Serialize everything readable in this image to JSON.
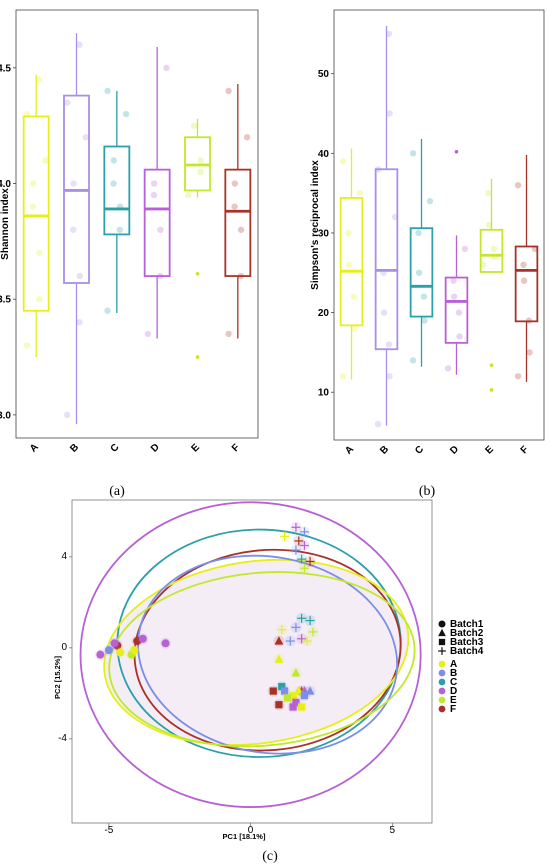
{
  "captions": {
    "a": "(a)",
    "b": "(b)",
    "c": "(c)"
  },
  "chart_data": [
    {
      "id": "a",
      "type": "box",
      "ylabel": "Shannon index",
      "ylim": [
        2.9,
        4.75
      ],
      "yticks": [
        3.0,
        3.5,
        4.0,
        4.5
      ],
      "ytick_labels": [
        "3.0",
        "3.5",
        "4.0",
        "4.5"
      ],
      "categories": [
        "A",
        "B",
        "C",
        "D",
        "E",
        "F"
      ],
      "colors": [
        "#e6f018",
        "#a98fe8",
        "#2aa0a8",
        "#b860d6",
        "#c2e82a",
        "#a83228"
      ],
      "boxes": [
        {
          "min": 3.25,
          "q1": 3.45,
          "median": 3.86,
          "q3": 4.29,
          "max": 4.47
        },
        {
          "min": 2.96,
          "q1": 3.57,
          "median": 3.97,
          "q3": 4.38,
          "max": 4.65
        },
        {
          "min": 3.44,
          "q1": 3.78,
          "median": 3.89,
          "q3": 4.16,
          "max": 4.4
        },
        {
          "min": 3.33,
          "q1": 3.6,
          "median": 3.89,
          "q3": 4.06,
          "max": 4.59
        },
        {
          "min": 3.94,
          "q1": 3.97,
          "median": 4.08,
          "q3": 4.2,
          "max": 4.28
        },
        {
          "min": 3.33,
          "q1": 3.6,
          "median": 3.88,
          "q3": 4.06,
          "max": 4.43
        }
      ],
      "outliers": [
        [],
        [],
        [],
        [],
        [
          3.61,
          3.25
        ],
        []
      ],
      "points": [
        [
          3.3,
          3.5,
          3.7,
          3.9,
          4.0,
          4.1,
          4.3,
          4.45
        ],
        [
          3.0,
          3.4,
          3.6,
          3.8,
          4.0,
          4.2,
          4.35,
          4.6
        ],
        [
          3.45,
          3.8,
          3.9,
          4.0,
          4.1,
          4.3,
          4.4
        ],
        [
          3.35,
          3.6,
          3.8,
          3.95,
          4.0,
          4.5
        ],
        [
          3.95,
          4.05,
          4.1,
          4.25
        ],
        [
          3.35,
          3.6,
          3.8,
          3.9,
          4.0,
          4.2,
          4.4
        ]
      ]
    },
    {
      "id": "b",
      "type": "box",
      "ylabel": "Simpson's reciprocal index",
      "ylim": [
        4,
        58
      ],
      "yticks": [
        10,
        20,
        30,
        40,
        50
      ],
      "ytick_labels": [
        "10",
        "20",
        "30",
        "40",
        "50"
      ],
      "categories": [
        "A",
        "B",
        "C",
        "D",
        "E",
        "F"
      ],
      "colors": [
        "#e6f018",
        "#a98fe8",
        "#2aa0a8",
        "#b860d6",
        "#c2e82a",
        "#a83228"
      ],
      "boxes": [
        {
          "min": 11.6,
          "q1": 18.4,
          "median": 25.2,
          "q3": 34.4,
          "max": 40.6
        },
        {
          "min": 5.8,
          "q1": 15.4,
          "median": 25.3,
          "q3": 38.0,
          "max": 56.0
        },
        {
          "min": 13.2,
          "q1": 19.5,
          "median": 23.3,
          "q3": 30.6,
          "max": 41.8
        },
        {
          "min": 12.2,
          "q1": 16.2,
          "median": 21.4,
          "q3": 24.4,
          "max": 29.7
        },
        {
          "min": 25.1,
          "q1": 25.1,
          "median": 27.2,
          "q3": 30.4,
          "max": 36.8
        },
        {
          "min": 11.3,
          "q1": 18.9,
          "median": 25.3,
          "q3": 28.3,
          "max": 39.8
        }
      ],
      "outliers": [
        [],
        [],
        [],
        [
          40.2
        ],
        [
          13.4,
          10.3
        ],
        []
      ],
      "points": [
        [
          12,
          18,
          22,
          26,
          30,
          35,
          39
        ],
        [
          6,
          12,
          16,
          20,
          25,
          32,
          38,
          45,
          55
        ],
        [
          14,
          19,
          22,
          25,
          30,
          34,
          40
        ],
        [
          13,
          17,
          20,
          22,
          24,
          28
        ],
        [
          26,
          27,
          28,
          31,
          35
        ],
        [
          12,
          15,
          19,
          24,
          26,
          28,
          36
        ]
      ]
    },
    {
      "id": "c",
      "type": "scatter",
      "xlabel": "PC1  [18.1%]",
      "ylabel": "PC2  [15.2%]",
      "xlim": [
        -6.3,
        6.4
      ],
      "ylim": [
        -7.7,
        6.5
      ],
      "xticks": [
        -5,
        0,
        5
      ],
      "xtick_labels": [
        "-5",
        "0",
        "5"
      ],
      "yticks": [
        -4,
        0,
        4
      ],
      "ytick_labels": [
        "-4",
        "0",
        "4"
      ],
      "legend_batch": [
        "Batch1",
        "Batch2",
        "Batch3",
        "Batch4"
      ],
      "legend_groups": [
        {
          "name": "A",
          "color": "#e6f018"
        },
        {
          "name": "B",
          "color": "#7b8ee8"
        },
        {
          "name": "C",
          "color": "#2aa0a8"
        },
        {
          "name": "D",
          "color": "#b860d6"
        },
        {
          "name": "E",
          "color": "#c2e82a"
        },
        {
          "name": "F",
          "color": "#a83228"
        }
      ],
      "ellipses": [
        {
          "group": "D",
          "cx": 0.0,
          "cy": -0.3,
          "rx": 6.0,
          "ry": 6.7,
          "angle": 0
        },
        {
          "group": "C",
          "cx": 0.3,
          "cy": 0.2,
          "rx": 5.0,
          "ry": 5.0,
          "angle": 0
        },
        {
          "group": "F",
          "cx": 0.6,
          "cy": -0.1,
          "rx": 4.7,
          "ry": 4.4,
          "angle": -5
        },
        {
          "group": "A",
          "cx": 0.2,
          "cy": -0.2,
          "rx": 5.4,
          "ry": 4.0,
          "angle": -8
        },
        {
          "group": "B",
          "cx": 0.6,
          "cy": -0.3,
          "rx": 4.6,
          "ry": 4.3,
          "angle": 10
        },
        {
          "group": "E",
          "cx": 0.4,
          "cy": -0.5,
          "rx": 5.4,
          "ry": 3.8,
          "angle": -5
        }
      ],
      "points": [
        {
          "x": -5.3,
          "y": -0.3,
          "g": "D",
          "b": "Batch1"
        },
        {
          "x": -5.0,
          "y": -0.1,
          "g": "B",
          "b": "Batch1"
        },
        {
          "x": -4.7,
          "y": 0.1,
          "g": "F",
          "b": "Batch1"
        },
        {
          "x": -4.6,
          "y": -0.2,
          "g": "A",
          "b": "Batch1"
        },
        {
          "x": -4.8,
          "y": 0.2,
          "g": "D",
          "b": "Batch1"
        },
        {
          "x": -4.2,
          "y": -0.3,
          "g": "E",
          "b": "Batch1"
        },
        {
          "x": -4.0,
          "y": 0.3,
          "g": "F",
          "b": "Batch1"
        },
        {
          "x": -3.8,
          "y": 0.4,
          "g": "D",
          "b": "Batch1"
        },
        {
          "x": -4.1,
          "y": -0.1,
          "g": "A",
          "b": "Batch1"
        },
        {
          "x": -3.0,
          "y": 0.2,
          "g": "D",
          "b": "Batch1"
        },
        {
          "x": 1.0,
          "y": 0.3,
          "g": "F",
          "b": "Batch2"
        },
        {
          "x": 1.0,
          "y": -0.5,
          "g": "A",
          "b": "Batch2"
        },
        {
          "x": 1.6,
          "y": -1.1,
          "g": "E",
          "b": "Batch2"
        },
        {
          "x": 1.8,
          "y": -1.9,
          "g": "F",
          "b": "Batch2"
        },
        {
          "x": 1.9,
          "y": -1.9,
          "g": "D",
          "b": "Batch2"
        },
        {
          "x": 2.1,
          "y": -1.9,
          "g": "B",
          "b": "Batch2"
        },
        {
          "x": 1.7,
          "y": -1.9,
          "g": "A",
          "b": "Batch2"
        },
        {
          "x": 0.8,
          "y": -1.9,
          "g": "F",
          "b": "Batch3"
        },
        {
          "x": 1.1,
          "y": -1.7,
          "g": "C",
          "b": "Batch3"
        },
        {
          "x": 1.2,
          "y": -1.9,
          "g": "B",
          "b": "Batch3"
        },
        {
          "x": 1.5,
          "y": -2.1,
          "g": "A",
          "b": "Batch3"
        },
        {
          "x": 1.3,
          "y": -2.2,
          "g": "E",
          "b": "Batch3"
        },
        {
          "x": 1.9,
          "y": -2.1,
          "g": "B",
          "b": "Batch3"
        },
        {
          "x": 1.6,
          "y": -2.4,
          "g": "D",
          "b": "Batch3"
        },
        {
          "x": 1.0,
          "y": -2.5,
          "g": "F",
          "b": "Batch3"
        },
        {
          "x": 1.8,
          "y": -2.6,
          "g": "A",
          "b": "Batch3"
        },
        {
          "x": 1.5,
          "y": -2.6,
          "g": "D",
          "b": "Batch3"
        },
        {
          "x": 1.6,
          "y": 5.3,
          "g": "D",
          "b": "Batch4"
        },
        {
          "x": 1.9,
          "y": 5.1,
          "g": "B",
          "b": "Batch4"
        },
        {
          "x": 1.2,
          "y": 4.9,
          "g": "A",
          "b": "Batch4"
        },
        {
          "x": 1.7,
          "y": 4.7,
          "g": "F",
          "b": "Batch4"
        },
        {
          "x": 1.9,
          "y": 4.5,
          "g": "D",
          "b": "Batch4"
        },
        {
          "x": 1.6,
          "y": 4.3,
          "g": "B",
          "b": "Batch4"
        },
        {
          "x": 1.8,
          "y": 3.9,
          "g": "C",
          "b": "Batch4"
        },
        {
          "x": 2.1,
          "y": 3.8,
          "g": "F",
          "b": "Batch4"
        },
        {
          "x": 1.9,
          "y": 3.5,
          "g": "E",
          "b": "Batch4"
        },
        {
          "x": 1.8,
          "y": 1.3,
          "g": "C",
          "b": "Batch4"
        },
        {
          "x": 2.1,
          "y": 1.2,
          "g": "C",
          "b": "Batch4"
        },
        {
          "x": 1.1,
          "y": 0.8,
          "g": "A",
          "b": "Batch4"
        },
        {
          "x": 1.6,
          "y": 0.9,
          "g": "B",
          "b": "Batch4"
        },
        {
          "x": 2.2,
          "y": 0.7,
          "g": "E",
          "b": "Batch4"
        },
        {
          "x": 1.8,
          "y": 0.4,
          "g": "D",
          "b": "Batch4"
        },
        {
          "x": 1.4,
          "y": 0.3,
          "g": "B",
          "b": "Batch4"
        },
        {
          "x": 2.0,
          "y": 0.3,
          "g": "A",
          "b": "Batch4"
        }
      ]
    }
  ]
}
